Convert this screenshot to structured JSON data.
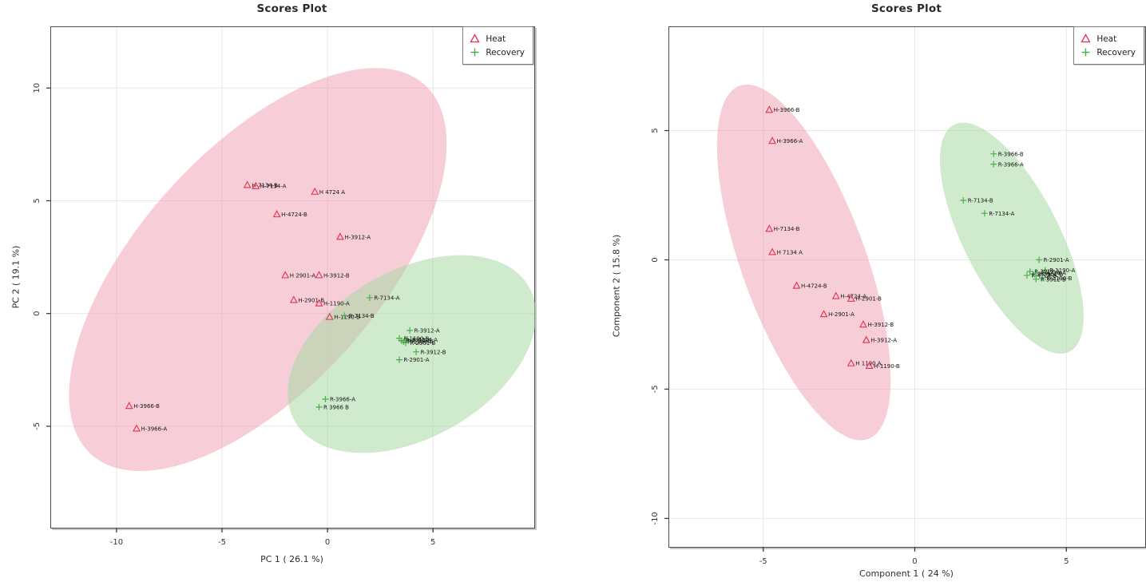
{
  "page": {
    "background": "#ffffff"
  },
  "chart_data": [
    {
      "type": "scatter",
      "title": "Scores Plot",
      "xlabel": "PC 1 ( 26.1 %)",
      "ylabel": "PC 2 ( 19.1 %)",
      "xlim": [
        -13.1,
        9.8
      ],
      "ylim": [
        -9.5,
        12.7
      ],
      "xticks": [
        -10,
        -5,
        0,
        5
      ],
      "yticks": [
        -5,
        0,
        5,
        10
      ],
      "grid": true,
      "legend_position": "top-right",
      "legend": [
        {
          "label": "Heat",
          "marker": "triangle",
          "color": "#e8304e"
        },
        {
          "label": "Recovery",
          "marker": "plus",
          "color": "#4bae50"
        }
      ],
      "ellipses": [
        {
          "group": "Heat",
          "cx": -3.3,
          "cy": 1.95,
          "rx": 11.8,
          "ry": 5.3,
          "tilt_deg": -48,
          "fill": "#ef9db1",
          "opacity": 0.5
        },
        {
          "group": "Recovery",
          "cx": 4.0,
          "cy": -1.8,
          "rx": 6.4,
          "ry": 3.7,
          "tilt_deg": -30,
          "fill": "#a8d8a4",
          "opacity": 0.55
        }
      ],
      "series": [
        {
          "name": "Heat",
          "marker": "triangle",
          "color": "#e8304e",
          "points": [
            {
              "x": -3.8,
              "y": 5.7,
              "label": "H-7134-B"
            },
            {
              "x": -3.4,
              "y": 5.65,
              "label": "H-7134-A"
            },
            {
              "x": -0.6,
              "y": 5.4,
              "label": "H 4724 A"
            },
            {
              "x": -2.4,
              "y": 4.4,
              "label": "H-4724-B"
            },
            {
              "x": 0.6,
              "y": 3.4,
              "label": "H-3912-A"
            },
            {
              "x": -2.0,
              "y": 1.7,
              "label": "H 2901-A"
            },
            {
              "x": -0.4,
              "y": 1.7,
              "label": "H-3912-B"
            },
            {
              "x": -1.6,
              "y": 0.6,
              "label": "H-2901-B"
            },
            {
              "x": -0.4,
              "y": 0.45,
              "label": "H-1190-A"
            },
            {
              "x": 0.1,
              "y": -0.15,
              "label": "H-1190-B"
            },
            {
              "x": -9.4,
              "y": -4.1,
              "label": "H-3966-B"
            },
            {
              "x": -9.05,
              "y": -5.1,
              "label": "H-3966-A"
            }
          ]
        },
        {
          "name": "Recovery",
          "marker": "plus",
          "color": "#4bae50",
          "points": [
            {
              "x": 2.0,
              "y": 0.7,
              "label": "R-7134-A"
            },
            {
              "x": 0.8,
              "y": -0.1,
              "label": "R-7134-B"
            },
            {
              "x": 3.9,
              "y": -0.75,
              "label": "R-3912-A"
            },
            {
              "x": 3.4,
              "y": -1.1,
              "label": "R-1190-B"
            },
            {
              "x": 3.8,
              "y": -1.15,
              "label": "R-4724-A"
            },
            {
              "x": 3.6,
              "y": -1.25,
              "label": "R-1190-A"
            },
            {
              "x": 3.5,
              "y": -1.2,
              "label": "R-4724-B"
            },
            {
              "x": 3.7,
              "y": -1.3,
              "label": "R-2901-B"
            },
            {
              "x": 4.2,
              "y": -1.7,
              "label": "R-3912-B"
            },
            {
              "x": 3.4,
              "y": -2.05,
              "label": "R-2901-A"
            },
            {
              "x": -0.1,
              "y": -3.8,
              "label": "R-3966-A"
            },
            {
              "x": -0.4,
              "y": -4.15,
              "label": "R 3966 B"
            }
          ]
        }
      ]
    },
    {
      "type": "scatter",
      "title": "Scores Plot",
      "xlabel": "Component 1 ( 24 %)",
      "ylabel": "Component 2 ( 15.8 %)",
      "xlim": [
        -8.1,
        7.6
      ],
      "ylim": [
        -11.1,
        9.0
      ],
      "xticks": [
        -5,
        0,
        5
      ],
      "yticks": [
        -10,
        -5,
        0,
        5
      ],
      "grid": true,
      "legend_position": "top-right",
      "legend": [
        {
          "label": "Heat",
          "marker": "triangle",
          "color": "#e8304e"
        },
        {
          "label": "Recovery",
          "marker": "plus",
          "color": "#4bae50"
        }
      ],
      "ellipses": [
        {
          "group": "Heat",
          "cx": -3.66,
          "cy": -0.1,
          "rx": 6.2,
          "ry": 2.4,
          "tilt_deg": 70,
          "fill": "#ef9db1",
          "opacity": 0.5
        },
        {
          "group": "Recovery",
          "cx": 3.2,
          "cy": 0.84,
          "rx": 4.2,
          "ry": 1.85,
          "tilt_deg": 63,
          "fill": "#a8d8a4",
          "opacity": 0.55
        }
      ],
      "series": [
        {
          "name": "Heat",
          "marker": "triangle",
          "color": "#e8304e",
          "points": [
            {
              "x": -4.8,
              "y": 5.8,
              "label": "H-3966-B"
            },
            {
              "x": -4.7,
              "y": 4.6,
              "label": "H-3966-A"
            },
            {
              "x": -4.8,
              "y": 1.2,
              "label": "H-7134-B"
            },
            {
              "x": -4.7,
              "y": 0.3,
              "label": "H 7134 A"
            },
            {
              "x": -3.9,
              "y": -1.0,
              "label": "H-4724-B"
            },
            {
              "x": -2.6,
              "y": -1.4,
              "label": "H-4724-A"
            },
            {
              "x": -2.1,
              "y": -1.5,
              "label": "H-2901-B"
            },
            {
              "x": -3.0,
              "y": -2.1,
              "label": "H-2901-A"
            },
            {
              "x": -1.7,
              "y": -2.5,
              "label": "H-3912-B"
            },
            {
              "x": -1.6,
              "y": -3.1,
              "label": "H-3912-A"
            },
            {
              "x": -2.1,
              "y": -4.0,
              "label": "H 1190 A"
            },
            {
              "x": -1.5,
              "y": -4.1,
              "label": "H-1190-B"
            }
          ]
        },
        {
          "name": "Recovery",
          "marker": "plus",
          "color": "#4bae50",
          "points": [
            {
              "x": 2.6,
              "y": 4.1,
              "label": "R-3966-B"
            },
            {
              "x": 2.6,
              "y": 3.7,
              "label": "R-3966-A"
            },
            {
              "x": 1.6,
              "y": 2.3,
              "label": "R-7134-B"
            },
            {
              "x": 2.3,
              "y": 1.8,
              "label": "R-7134-A"
            },
            {
              "x": 4.1,
              "y": 0.0,
              "label": "R-2901-A"
            },
            {
              "x": 4.3,
              "y": -0.4,
              "label": "R-1190-A"
            },
            {
              "x": 3.8,
              "y": -0.45,
              "label": "R-3912-A"
            },
            {
              "x": 3.9,
              "y": -0.55,
              "label": "R-2901-B"
            },
            {
              "x": 4.0,
              "y": -0.5,
              "label": "R-4724-A"
            },
            {
              "x": 3.7,
              "y": -0.6,
              "label": "R-4724-B"
            },
            {
              "x": 4.2,
              "y": -0.7,
              "label": "R-1190-B"
            },
            {
              "x": 4.0,
              "y": -0.75,
              "label": "R-3912-B"
            }
          ]
        }
      ]
    }
  ]
}
